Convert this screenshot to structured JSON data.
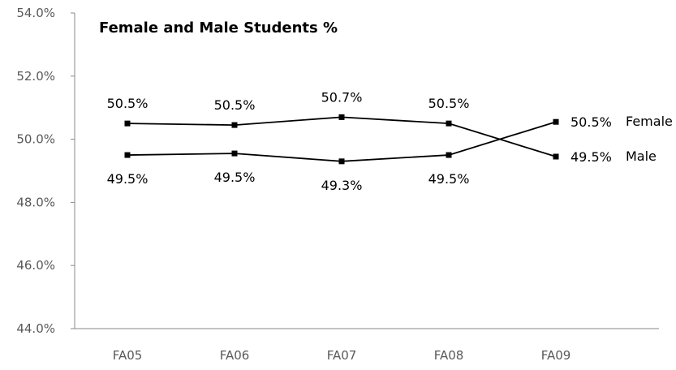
{
  "chart_data": {
    "type": "line",
    "title": "Female and Male Students %",
    "xlabel": "",
    "ylabel": "",
    "categories": [
      "FA05",
      "FA06",
      "FA07",
      "FA08",
      "FA09"
    ],
    "ylim": [
      44.0,
      54.0
    ],
    "yticks": [
      "44.0%",
      "46.0%",
      "48.0%",
      "50.0%",
      "52.0%",
      "54.0%"
    ],
    "grid": false,
    "legend": "series names shown at line ends (right)",
    "series": [
      {
        "name": "Male",
        "values": [
          50.5,
          50.45,
          50.7,
          50.5,
          49.45
        ],
        "labels": [
          "50.5%",
          "50.5%",
          "50.7%",
          "50.5%",
          "49.5%"
        ],
        "color": "#000000"
      },
      {
        "name": "Female",
        "values": [
          49.5,
          49.55,
          49.3,
          49.5,
          50.55
        ],
        "labels": [
          "49.5%",
          "49.5%",
          "49.3%",
          "49.5%",
          "50.5%"
        ],
        "color": "#000000"
      }
    ]
  }
}
